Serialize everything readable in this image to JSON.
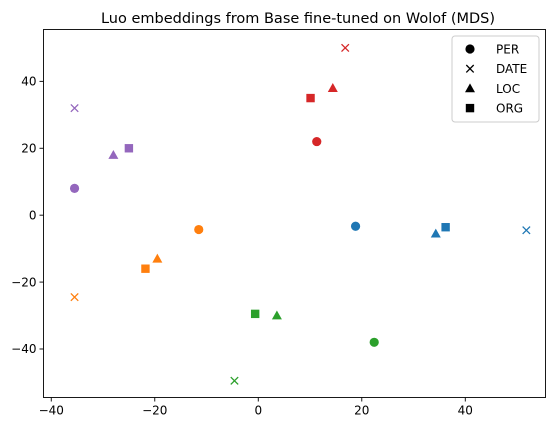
{
  "chart_data": {
    "type": "scatter",
    "title": "Luo embeddings from Base fine-tuned on Wolof (MDS)",
    "xlabel": "",
    "ylabel": "",
    "xlim": [
      -41.5,
      55.5
    ],
    "ylim": [
      -54.5,
      55.5
    ],
    "x_ticks": [
      -40,
      -20,
      0,
      20,
      40
    ],
    "y_ticks": [
      -40,
      -20,
      0,
      20,
      40
    ],
    "grid": false,
    "legend": {
      "position": "top-right",
      "entries": [
        {
          "label": "PER",
          "marker": "circle"
        },
        {
          "label": "DATE",
          "marker": "x"
        },
        {
          "label": "LOC",
          "marker": "triangle"
        },
        {
          "label": "ORG",
          "marker": "square"
        }
      ]
    },
    "colors": {
      "blue": "#1f77b4",
      "orange": "#ff7f0e",
      "green": "#2ca02c",
      "red": "#d62728",
      "purple": "#9467bd"
    },
    "points": [
      {
        "label": "PER",
        "marker": "circle",
        "color": "purple",
        "x": -35.5,
        "y": 8
      },
      {
        "label": "DATE",
        "marker": "x",
        "color": "purple",
        "x": -35.5,
        "y": 32
      },
      {
        "label": "LOC",
        "marker": "triangle",
        "color": "purple",
        "x": -28,
        "y": 18
      },
      {
        "label": "ORG",
        "marker": "square",
        "color": "purple",
        "x": -25,
        "y": 20
      },
      {
        "label": "PER",
        "marker": "circle",
        "color": "orange",
        "x": -11.5,
        "y": -4.3
      },
      {
        "label": "DATE",
        "marker": "x",
        "color": "orange",
        "x": -35.5,
        "y": -24.5
      },
      {
        "label": "LOC",
        "marker": "triangle",
        "color": "orange",
        "x": -19.5,
        "y": -13
      },
      {
        "label": "ORG",
        "marker": "square",
        "color": "orange",
        "x": -21.8,
        "y": -16
      },
      {
        "label": "PER",
        "marker": "circle",
        "color": "red",
        "x": 11.3,
        "y": 22
      },
      {
        "label": "DATE",
        "marker": "x",
        "color": "red",
        "x": 16.8,
        "y": 50
      },
      {
        "label": "LOC",
        "marker": "triangle",
        "color": "red",
        "x": 14.4,
        "y": 38
      },
      {
        "label": "ORG",
        "marker": "square",
        "color": "red",
        "x": 10.1,
        "y": 35
      },
      {
        "label": "PER",
        "marker": "circle",
        "color": "blue",
        "x": 18.8,
        "y": -3.3
      },
      {
        "label": "DATE",
        "marker": "x",
        "color": "blue",
        "x": 51.8,
        "y": -4.5
      },
      {
        "label": "LOC",
        "marker": "triangle",
        "color": "blue",
        "x": 34.3,
        "y": -5.5
      },
      {
        "label": "ORG",
        "marker": "square",
        "color": "blue",
        "x": 36.2,
        "y": -3.6
      },
      {
        "label": "PER",
        "marker": "circle",
        "color": "green",
        "x": 22.4,
        "y": -38
      },
      {
        "label": "DATE",
        "marker": "x",
        "color": "green",
        "x": -4.6,
        "y": -49.5
      },
      {
        "label": "LOC",
        "marker": "triangle",
        "color": "green",
        "x": 3.6,
        "y": -30
      },
      {
        "label": "ORG",
        "marker": "square",
        "color": "green",
        "x": -0.6,
        "y": -29.5
      }
    ]
  }
}
